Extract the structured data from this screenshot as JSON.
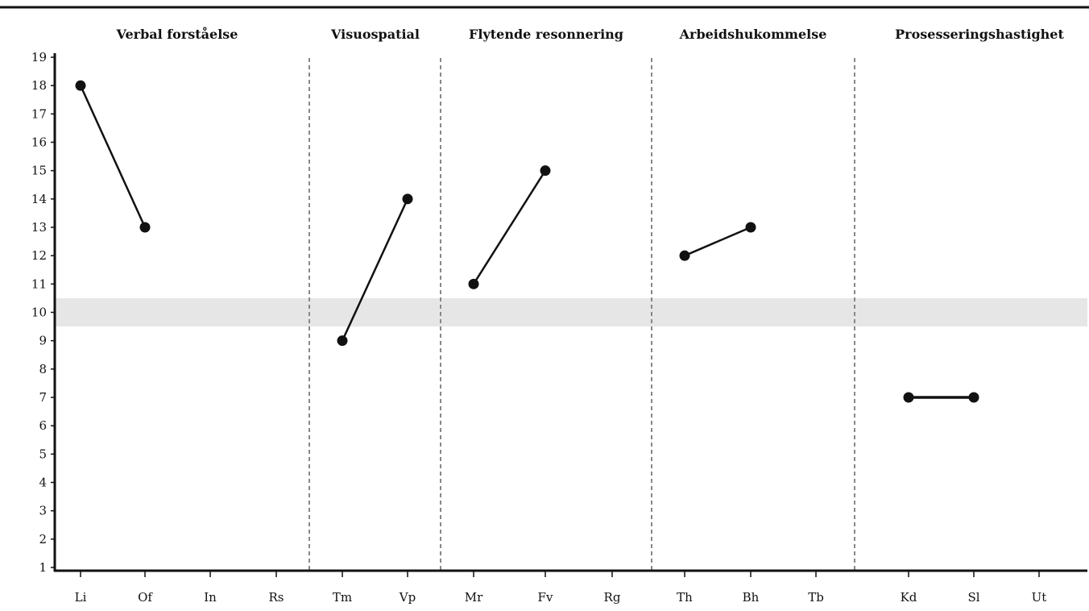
{
  "chart_data": {
    "type": "line",
    "ylim": [
      1,
      19
    ],
    "yticks": [
      1,
      2,
      3,
      4,
      5,
      6,
      7,
      8,
      9,
      10,
      11,
      12,
      13,
      14,
      15,
      16,
      17,
      18,
      19
    ],
    "categories": [
      "Li",
      "Of",
      "In",
      "Rs",
      "Tm",
      "Vp",
      "Mr",
      "Fv",
      "Rg",
      "Th",
      "Bh",
      "Tb",
      "Kd",
      "Sl",
      "Ut"
    ],
    "groups": [
      {
        "name": "Verbal forståelse",
        "categories": [
          "Li",
          "Of",
          "In",
          "Rs"
        ]
      },
      {
        "name": "Visuospatial",
        "categories": [
          "Tm",
          "Vp"
        ]
      },
      {
        "name": "Flytende resonnering",
        "categories": [
          "Mr",
          "Fv",
          "Rg"
        ]
      },
      {
        "name": "Arbeidshukommelse",
        "categories": [
          "Th",
          "Bh",
          "Tb"
        ]
      },
      {
        "name": "Prosesseringshastighet",
        "categories": [
          "Kd",
          "Sl",
          "Ut"
        ]
      }
    ],
    "series": [
      {
        "points": [
          {
            "x": "Li",
            "y": 18
          },
          {
            "x": "Of",
            "y": 13
          }
        ]
      },
      {
        "points": [
          {
            "x": "Tm",
            "y": 9
          },
          {
            "x": "Vp",
            "y": 14
          }
        ]
      },
      {
        "points": [
          {
            "x": "Mr",
            "y": 11
          },
          {
            "x": "Fv",
            "y": 15
          }
        ]
      },
      {
        "points": [
          {
            "x": "Th",
            "y": 12
          },
          {
            "x": "Bh",
            "y": 13
          }
        ]
      },
      {
        "points": [
          {
            "x": "Kd",
            "y": 7
          },
          {
            "x": "Sl",
            "y": 7
          }
        ]
      }
    ],
    "mean_band": [
      9.5,
      10.5
    ],
    "grid": false
  }
}
